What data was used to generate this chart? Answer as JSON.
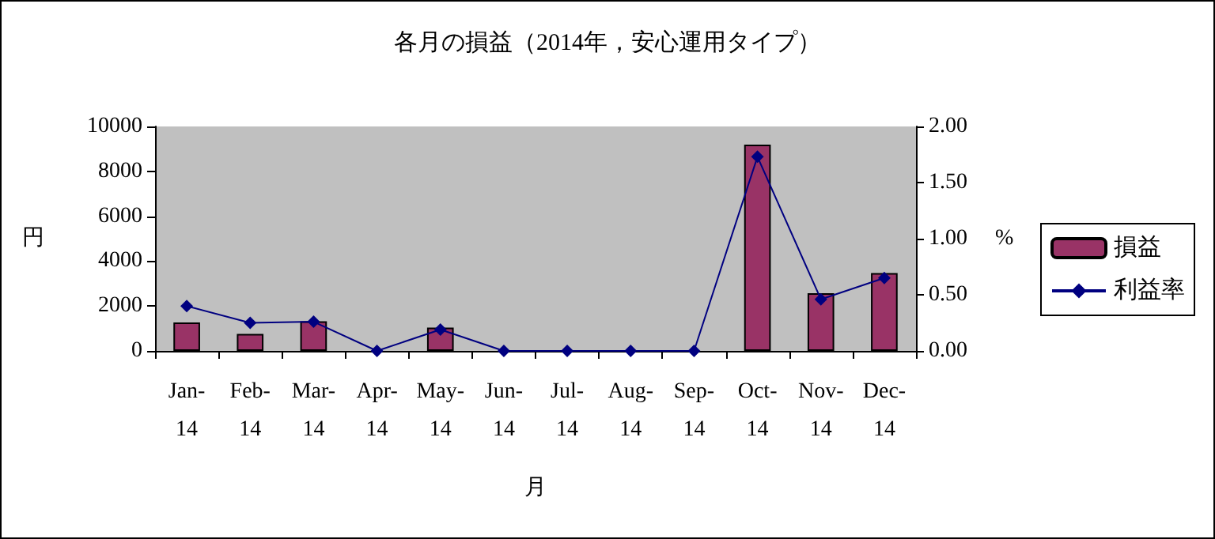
{
  "chart_data": {
    "type": "bar",
    "title": "各月の損益（2014年，安心運用タイプ）",
    "xlabel": "月",
    "ylabel": "円",
    "y2label": "%",
    "categories": [
      "Jan-\n14",
      "Feb-\n14",
      "Mar-\n14",
      "Apr-\n14",
      "May-\n14",
      "Jun-\n14",
      "Jul-\n14",
      "Aug-\n14",
      "Sep-\n14",
      "Oct-\n14",
      "Nov-\n14",
      "Dec-\n14"
    ],
    "series": [
      {
        "name": "損益",
        "color": "#993366",
        "values": [
          1270,
          760,
          1320,
          0,
          1040,
          0,
          0,
          0,
          0,
          9190,
          2570,
          3470
        ]
      },
      {
        "name": "利益率",
        "type": "line",
        "axis": "y2",
        "color": "#000080",
        "marker": "diamond",
        "values": [
          0.4,
          0.25,
          0.26,
          0,
          0.19,
          0,
          0,
          0,
          0,
          1.73,
          0.46,
          0.65
        ]
      }
    ],
    "ylim": [
      0,
      10000
    ],
    "yticks": [
      0,
      2000,
      4000,
      6000,
      8000,
      10000
    ],
    "y2lim": [
      0,
      2
    ],
    "y2ticks": [
      {
        "value": 0,
        "label": "0.00"
      },
      {
        "value": 0.5,
        "label": "0.50"
      },
      {
        "value": 1,
        "label": "1.00"
      },
      {
        "value": 1.5,
        "label": "1.50"
      },
      {
        "value": 2,
        "label": "2.00"
      }
    ],
    "grid": false,
    "legend": "right"
  }
}
